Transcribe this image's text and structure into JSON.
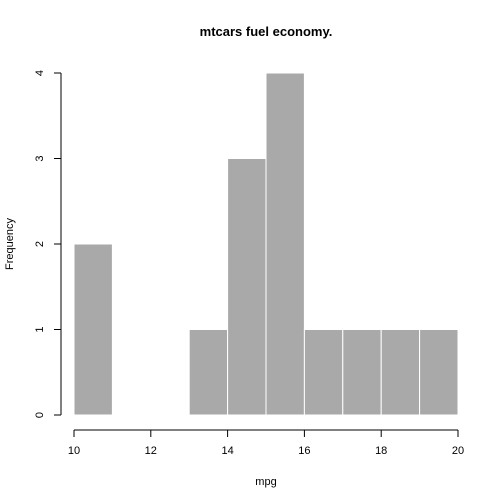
{
  "chart_data": {
    "type": "histogram",
    "title": "mtcars fuel economy.",
    "xlabel": "mpg",
    "ylabel": "Frequency",
    "xlim": [
      10,
      20
    ],
    "ylim": [
      0,
      4
    ],
    "x_ticks": [
      10,
      12,
      14,
      16,
      18,
      20
    ],
    "y_ticks": [
      0,
      1,
      2,
      3,
      4
    ],
    "bins": [
      {
        "from": 10,
        "to": 11,
        "count": 2
      },
      {
        "from": 11,
        "to": 12,
        "count": 0
      },
      {
        "from": 12,
        "to": 13,
        "count": 0
      },
      {
        "from": 13,
        "to": 14,
        "count": 1
      },
      {
        "from": 14,
        "to": 15,
        "count": 3
      },
      {
        "from": 15,
        "to": 16,
        "count": 4
      },
      {
        "from": 16,
        "to": 17,
        "count": 1
      },
      {
        "from": 17,
        "to": 18,
        "count": 1
      },
      {
        "from": 18,
        "to": 19,
        "count": 1
      },
      {
        "from": 19,
        "to": 20,
        "count": 1
      }
    ],
    "bar_color": "#a9a9a9",
    "bar_border_color": "#ffffff",
    "grid": false
  }
}
